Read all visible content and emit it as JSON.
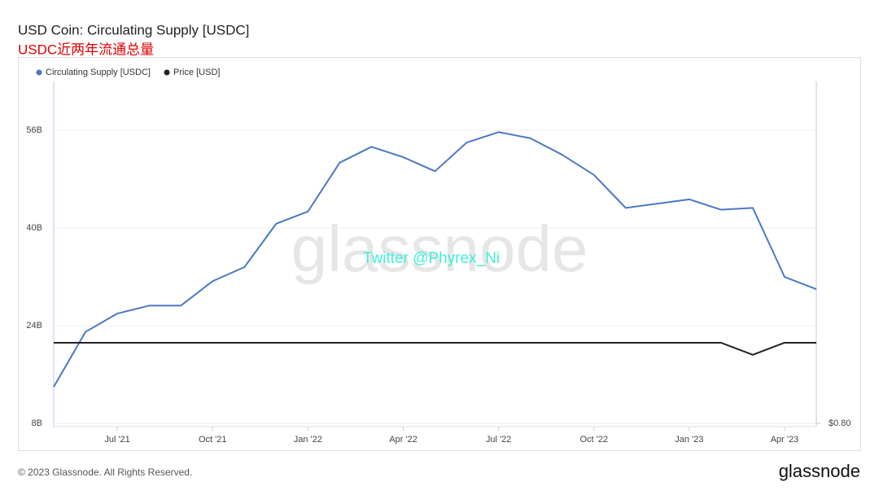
{
  "chart_data": {
    "type": "line",
    "title": "USD Coin: Circulating Supply [USDC]",
    "subtitle": "USDC近两年流通总量",
    "watermark": "glassnode",
    "annotation": "Twitter @Phyrex_Ni",
    "x": [
      "2021-05",
      "2021-06",
      "2021-07",
      "2021-08",
      "2021-09",
      "2021-10",
      "2021-11",
      "2021-12",
      "2022-01",
      "2022-02",
      "2022-03",
      "2022-04",
      "2022-05",
      "2022-06",
      "2022-07",
      "2022-08",
      "2022-09",
      "2022-10",
      "2022-11",
      "2022-12",
      "2023-01",
      "2023-02",
      "2023-03",
      "2023-04",
      "2023-05"
    ],
    "series": [
      {
        "name": "Circulating Supply [USDC]",
        "color": "#4a78c8",
        "values": [
          14,
          23,
          26,
          27.3,
          27.3,
          31.3,
          33.6,
          40.7,
          42.7,
          50.7,
          53.3,
          51.6,
          49.3,
          54,
          55.7,
          54.7,
          52,
          48.7,
          43.3,
          44,
          44.7,
          43,
          43.3,
          32,
          30
        ]
      },
      {
        "name": "Price [USD]",
        "color": "#222222",
        "axis": "y2",
        "values": [
          1.0,
          1.0,
          1.0,
          1.0,
          1.0,
          1.0,
          1.0,
          1.0,
          1.0,
          1.0,
          1.0,
          1.0,
          1.0,
          1.0,
          1.0,
          1.0,
          1.0,
          1.0,
          1.0,
          1.0,
          1.0,
          1.0,
          0.97,
          1.0,
          1.0
        ]
      }
    ],
    "xlim": [
      "2021-05",
      "2023-05"
    ],
    "xticks": [
      {
        "value": "2021-07",
        "label": "Jul '21"
      },
      {
        "value": "2021-10",
        "label": "Oct '21"
      },
      {
        "value": "2022-01",
        "label": "Jan '22"
      },
      {
        "value": "2022-04",
        "label": "Apr '22"
      },
      {
        "value": "2022-07",
        "label": "Jul '22"
      },
      {
        "value": "2022-10",
        "label": "Oct '22"
      },
      {
        "value": "2023-01",
        "label": "Jan '23"
      },
      {
        "value": "2023-04",
        "label": "Apr '23"
      }
    ],
    "ylim": [
      7.5,
      64
    ],
    "yticks": [
      {
        "value": 8,
        "label": "8B"
      },
      {
        "value": 24,
        "label": "24B"
      },
      {
        "value": 40,
        "label": "40B"
      },
      {
        "value": 56,
        "label": "56B"
      }
    ],
    "y2lim": [
      0.792,
      1.648
    ],
    "y2ticks": [
      {
        "value": 0.8,
        "label": "$0.80"
      }
    ],
    "grid": true
  },
  "footer": {
    "copyright": "© 2023 Glassnode. All Rights Reserved.",
    "logo": "glassnode"
  }
}
